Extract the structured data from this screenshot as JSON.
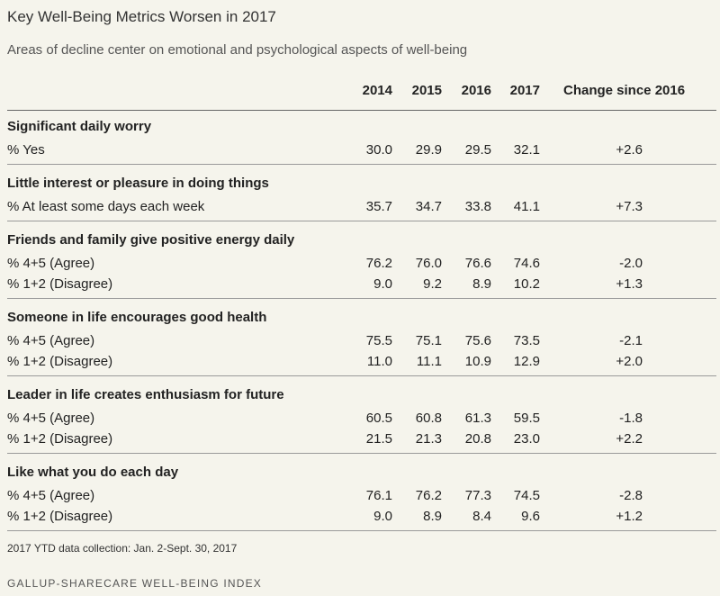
{
  "title": "Key Well-Being Metrics Worsen in 2017",
  "subtitle": "Areas of decline center on emotional and psychological aspects of well-being",
  "footnote": "2017 YTD data collection: Jan. 2-Sept. 30, 2017",
  "source": "GALLUP-SHARECARE WELL-BEING INDEX",
  "chart_data": {
    "type": "table",
    "columns": [
      "2014",
      "2015",
      "2016",
      "2017",
      "Change since 2016"
    ],
    "sections": [
      {
        "title": "Significant daily worry",
        "rows": [
          {
            "label": "% Yes",
            "values": [
              "30.0",
              "29.9",
              "29.5",
              "32.1"
            ],
            "change": "+2.6"
          }
        ]
      },
      {
        "title": "Little interest or pleasure in doing things",
        "rows": [
          {
            "label": "% At least some days each week",
            "values": [
              "35.7",
              "34.7",
              "33.8",
              "41.1"
            ],
            "change": "+7.3"
          }
        ]
      },
      {
        "title": "Friends and family give positive energy daily",
        "rows": [
          {
            "label": "% 4+5 (Agree)",
            "values": [
              "76.2",
              "76.0",
              "76.6",
              "74.6"
            ],
            "change": "-2.0"
          },
          {
            "label": "% 1+2 (Disagree)",
            "values": [
              "9.0",
              "9.2",
              "8.9",
              "10.2"
            ],
            "change": "+1.3"
          }
        ]
      },
      {
        "title": "Someone in life encourages good health",
        "rows": [
          {
            "label": "% 4+5 (Agree)",
            "values": [
              "75.5",
              "75.1",
              "75.6",
              "73.5"
            ],
            "change": "-2.1"
          },
          {
            "label": "% 1+2 (Disagree)",
            "values": [
              "11.0",
              "11.1",
              "10.9",
              "12.9"
            ],
            "change": "+2.0"
          }
        ]
      },
      {
        "title": "Leader in life creates enthusiasm for future",
        "rows": [
          {
            "label": "% 4+5 (Agree)",
            "values": [
              "60.5",
              "60.8",
              "61.3",
              "59.5"
            ],
            "change": "-1.8"
          },
          {
            "label": "% 1+2 (Disagree)",
            "values": [
              "21.5",
              "21.3",
              "20.8",
              "23.0"
            ],
            "change": "+2.2"
          }
        ]
      },
      {
        "title": "Like what you do each day",
        "rows": [
          {
            "label": "% 4+5 (Agree)",
            "values": [
              "76.1",
              "76.2",
              "77.3",
              "74.5"
            ],
            "change": "-2.8"
          },
          {
            "label": "% 1+2 (Disagree)",
            "values": [
              "9.0",
              "8.9",
              "8.4",
              "9.6"
            ],
            "change": "+1.2"
          }
        ]
      }
    ]
  }
}
